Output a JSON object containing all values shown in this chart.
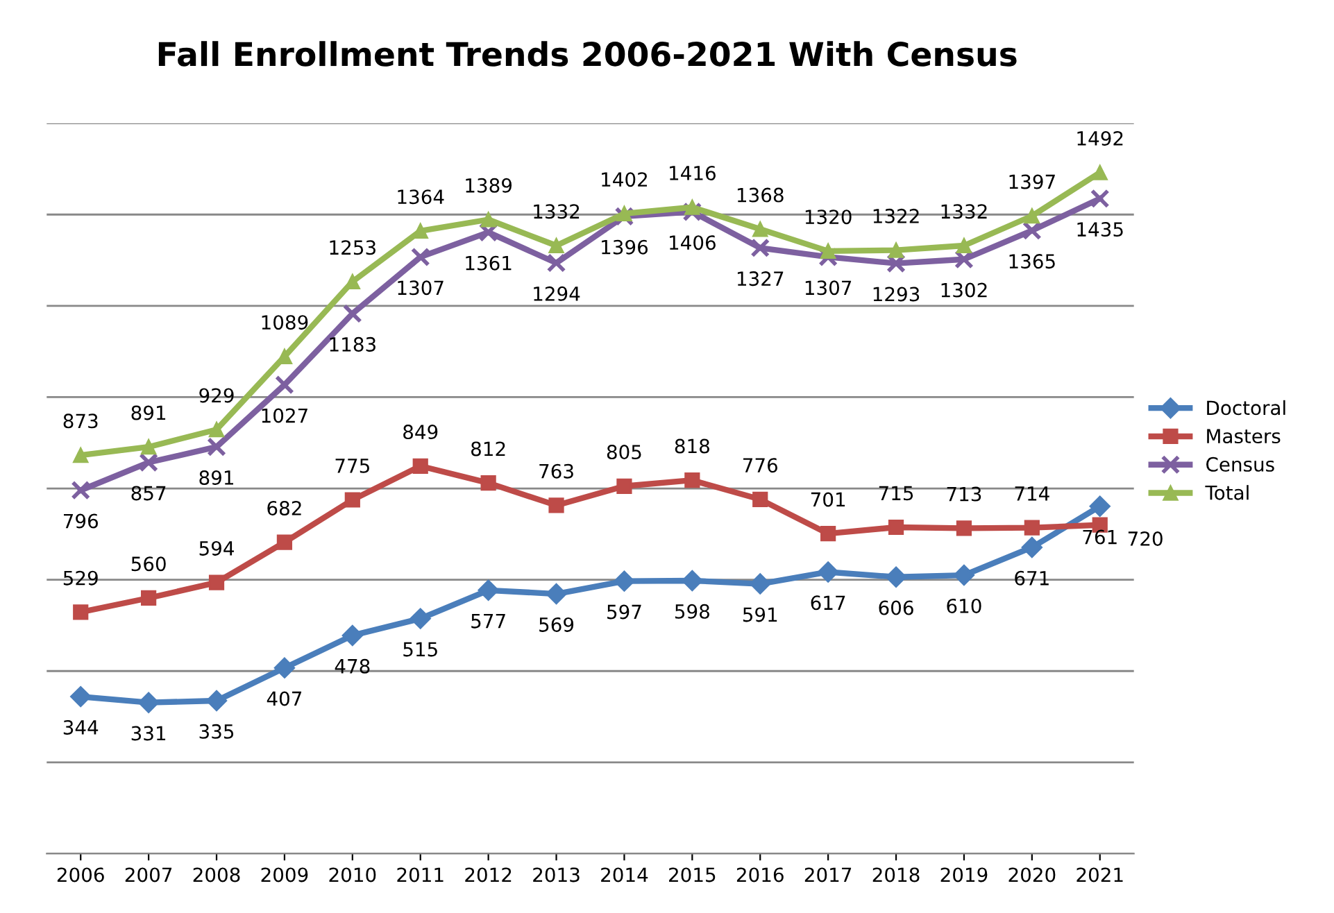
{
  "chart_data": {
    "type": "line",
    "title": "Fall Enrollment Trends 2006-2021 With Census",
    "categories": [
      "2006",
      "2007",
      "2008",
      "2009",
      "2010",
      "2011",
      "2012",
      "2013",
      "2014",
      "2015",
      "2016",
      "2017",
      "2018",
      "2019",
      "2020",
      "2021"
    ],
    "series": [
      {
        "name": "Doctoral",
        "color": "#4a7ebb",
        "marker": "diamond",
        "values": [
          344,
          331,
          335,
          407,
          478,
          515,
          577,
          569,
          597,
          598,
          591,
          617,
          606,
          610,
          671,
          761
        ]
      },
      {
        "name": "Masters",
        "color": "#be4b48",
        "marker": "square",
        "values": [
          529,
          560,
          594,
          682,
          775,
          849,
          812,
          763,
          805,
          818,
          776,
          701,
          715,
          713,
          714,
          720
        ]
      },
      {
        "name": "Census",
        "color": "#7d60a0",
        "marker": "cross",
        "values": [
          796,
          857,
          891,
          1027,
          1183,
          1307,
          1361,
          1294,
          1396,
          1406,
          1327,
          1307,
          1293,
          1302,
          1365,
          1435
        ]
      },
      {
        "name": "Total",
        "color": "#98b954",
        "marker": "triangle",
        "values": [
          873,
          891,
          929,
          1089,
          1253,
          1364,
          1389,
          1332,
          1402,
          1416,
          1368,
          1320,
          1322,
          1332,
          1397,
          1492
        ]
      }
    ],
    "ylim": [
      0,
      1600
    ],
    "yticks": [
      {
        "value": 0,
        "label": null
      },
      {
        "value": 200,
        "label": null
      },
      {
        "value": 400,
        "label": null
      },
      {
        "value": 600,
        "label": null
      },
      {
        "value": 800,
        "label": null
      },
      {
        "value": 1000,
        "label": null
      },
      {
        "value": 1200,
        "label": null
      },
      {
        "value": 1400,
        "label": null
      },
      {
        "value": 1600,
        "label": null
      }
    ],
    "tick_labels": "x",
    "grid": "y",
    "legend": "right",
    "data_labels": true,
    "line_style": "solid"
  }
}
